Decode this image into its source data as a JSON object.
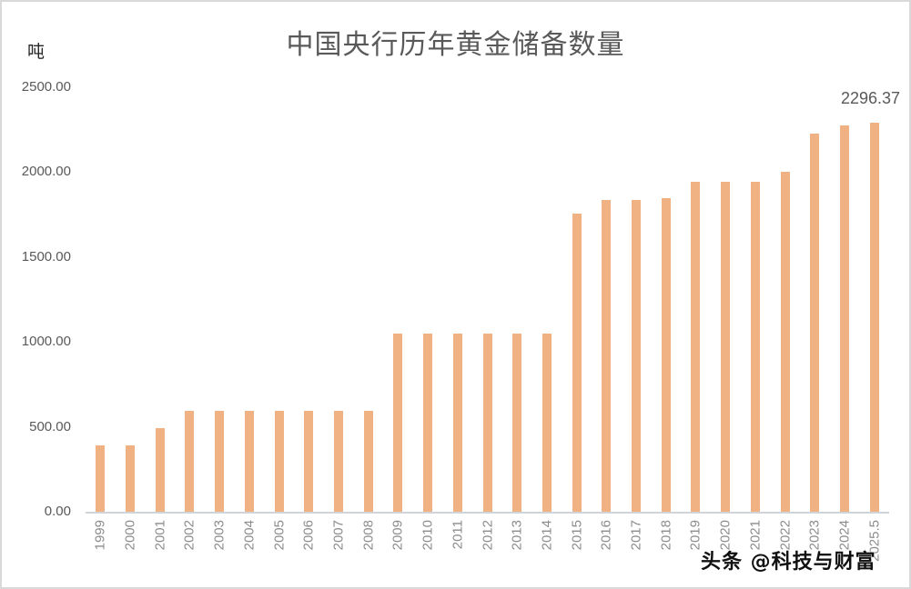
{
  "chart_data": {
    "type": "bar",
    "title": "中国央行历年黄金储备数量",
    "xlabel": "",
    "ylabel": "吨",
    "ylim": [
      0,
      2500
    ],
    "yticks": [
      "0.00",
      "500.00",
      "1000.00",
      "1500.00",
      "2000.00",
      "2500.00"
    ],
    "grid": false,
    "legend": null,
    "bar_color": "#F0B283",
    "categories": [
      "1999",
      "2000",
      "2001",
      "2002",
      "2003",
      "2004",
      "2005",
      "2006",
      "2007",
      "2008",
      "2009",
      "2010",
      "2011",
      "2012",
      "2013",
      "2014",
      "2015",
      "2016",
      "2017",
      "2018",
      "2019",
      "2020",
      "2021",
      "2022",
      "2023",
      "2024",
      "2025.5"
    ],
    "values": [
      395,
      395,
      500,
      600,
      600,
      600,
      600,
      600,
      600,
      600,
      1054,
      1054,
      1054,
      1054,
      1054,
      1054,
      1762,
      1842,
      1842,
      1852,
      1948,
      1948,
      1948,
      2010,
      2235,
      2280,
      2296.37
    ],
    "annotations": [
      {
        "category": "2025.5",
        "text": "2296.37"
      }
    ]
  },
  "watermark": "头条 @科技与财富"
}
